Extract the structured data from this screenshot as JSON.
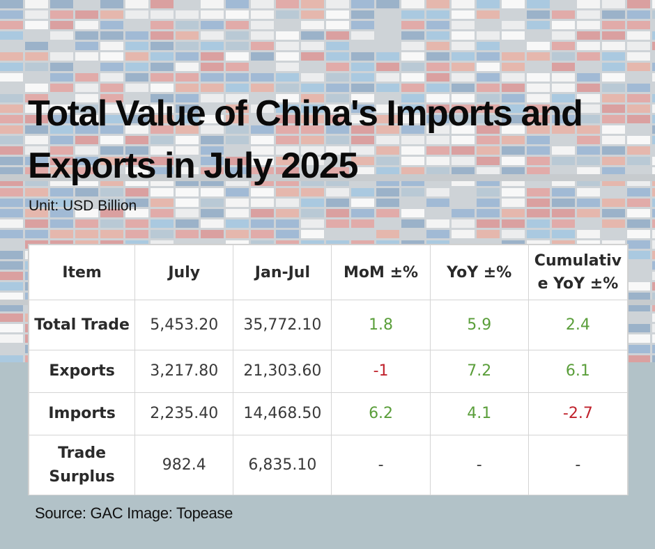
{
  "title": "Total Value of China's Imports and Exports in July 2025",
  "unit": "Unit: USD Billion",
  "source": "Source: GAC Image: Topease",
  "colors": {
    "positive": "#5a9e3a",
    "negative": "#c0222c",
    "neutral": "#3a3a3a"
  },
  "chart_data": {
    "type": "table",
    "columns": [
      "Item",
      "July",
      "Jan-Jul",
      "MoM ±%",
      "YoY ±%",
      "Cumulative YoY ±%"
    ],
    "rows": [
      {
        "item": "Total Trade",
        "july": "5,453.20",
        "jan_jul": "35,772.10",
        "mom": "1.8",
        "yoy": "5.9",
        "cum_yoy": "2.4"
      },
      {
        "item": "Exports",
        "july": "3,217.80",
        "jan_jul": "21,303.60",
        "mom": "-1",
        "yoy": "7.2",
        "cum_yoy": "6.1"
      },
      {
        "item": "Imports",
        "july": "2,235.40",
        "jan_jul": "14,468.50",
        "mom": "6.2",
        "yoy": "4.1",
        "cum_yoy": "-2.7"
      },
      {
        "item": "Trade Surplus",
        "july": "982.4",
        "jan_jul": "6,835.10",
        "mom": "-",
        "yoy": "-",
        "cum_yoy": "-"
      }
    ]
  }
}
